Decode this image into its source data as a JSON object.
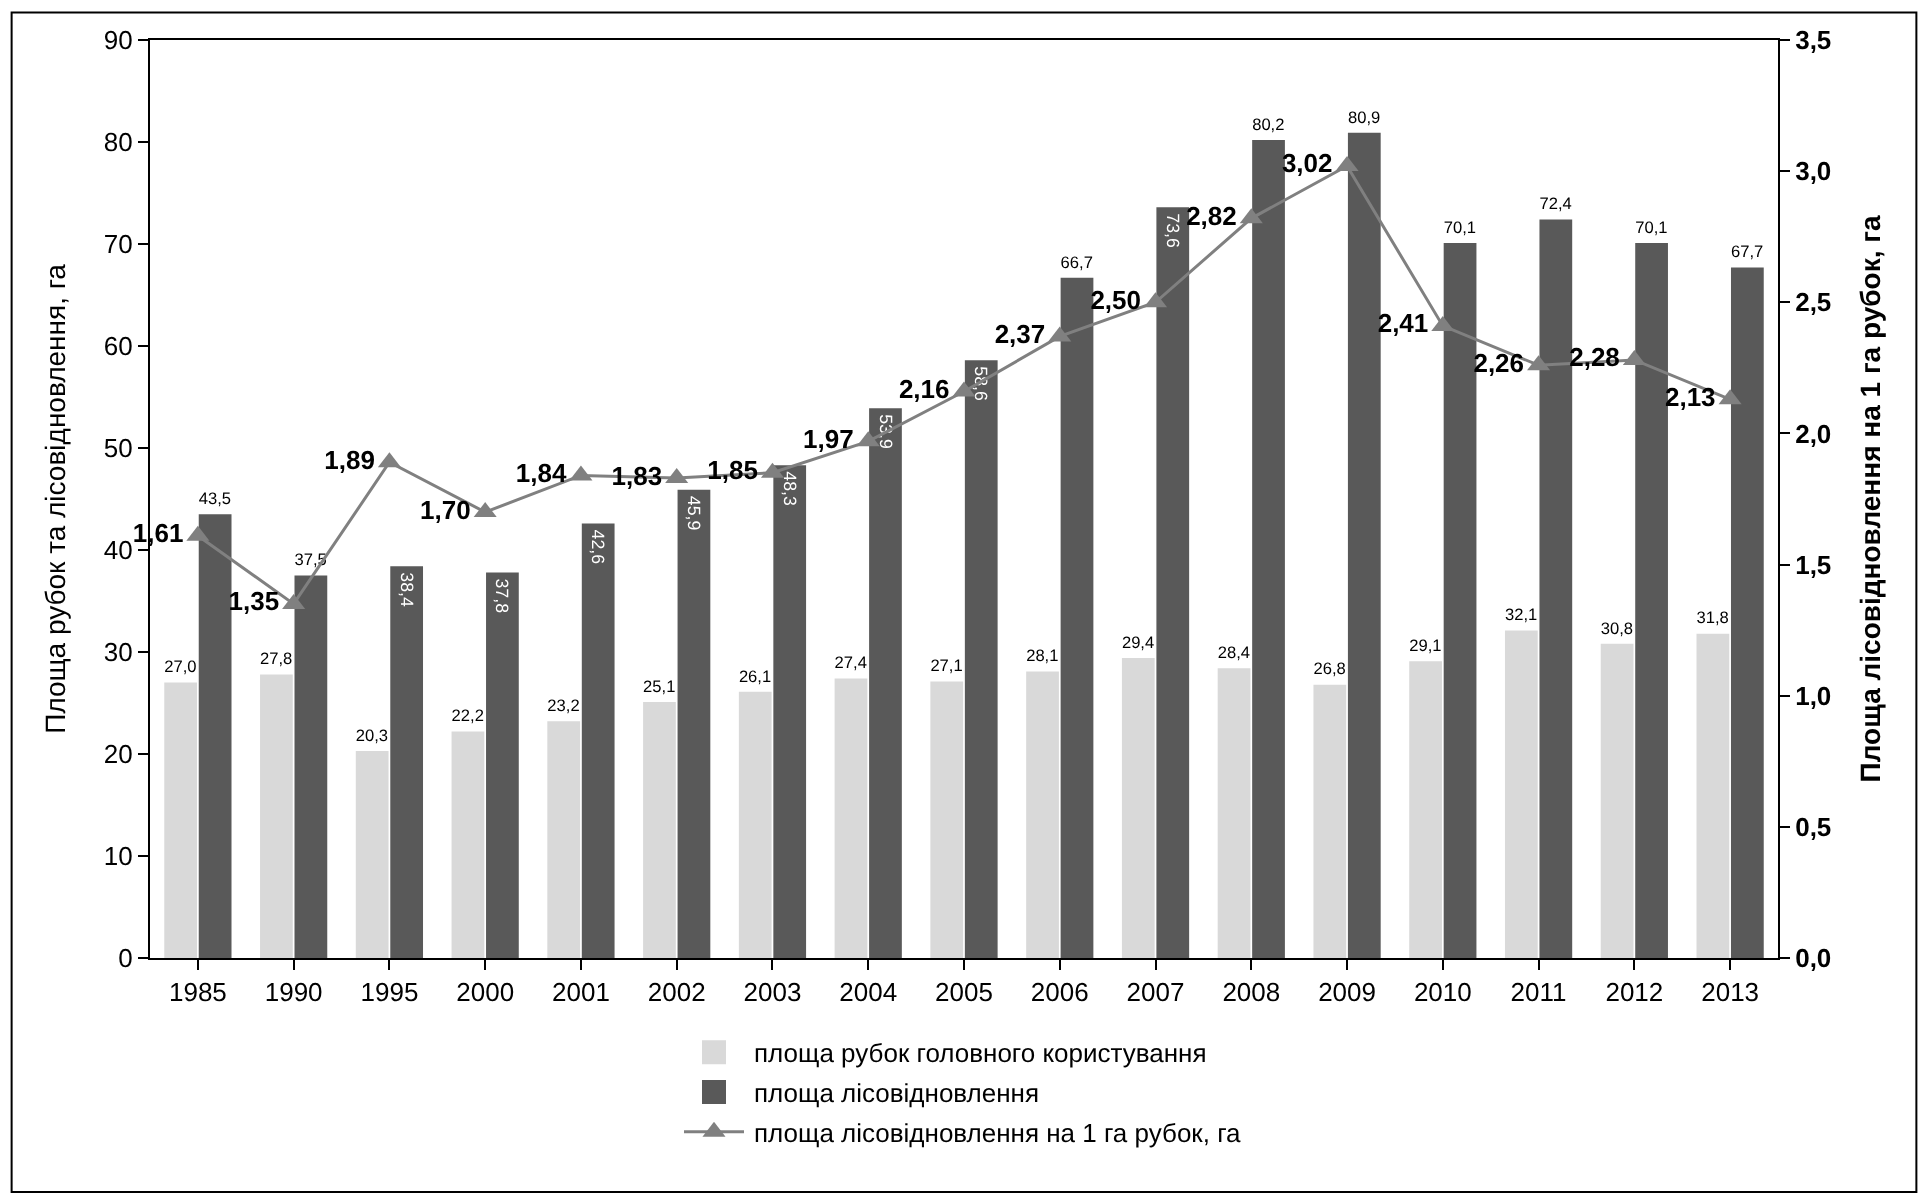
{
  "chart_data": {
    "type": "bar",
    "ylabel": "Площа рубок та лісовідновлення, га",
    "y2label": "Площа лісовідновлення на 1 га рубок, га",
    "categories": [
      "1985",
      "1990",
      "1995",
      "2000",
      "2001",
      "2002",
      "2003",
      "2004",
      "2005",
      "2006",
      "2007",
      "2008",
      "2009",
      "2010",
      "2011",
      "2012",
      "2013"
    ],
    "series": [
      {
        "name": "площа рубок головного користування",
        "color": "#d9d9d9",
        "values": [
          27.0,
          27.8,
          20.3,
          22.2,
          23.2,
          25.1,
          26.1,
          27.4,
          27.1,
          28.1,
          29.4,
          28.4,
          26.8,
          29.1,
          32.1,
          30.8,
          31.8
        ],
        "value_labels": [
          "27,0",
          "27,8",
          "20,3",
          "22,2",
          "23,2",
          "25,1",
          "26,1",
          "27,4",
          "27,1",
          "28,1",
          "29,4",
          "28,4",
          "26,8",
          "29,1",
          "32,1",
          "30,8",
          "31,8"
        ]
      },
      {
        "name": "площа лісовідновлення",
        "color": "#595959",
        "values": [
          43.5,
          37.5,
          38.4,
          37.8,
          42.6,
          45.9,
          48.3,
          53.9,
          58.6,
          66.7,
          73.6,
          80.2,
          80.9,
          70.1,
          72.4,
          70.1,
          67.7
        ],
        "value_labels": [
          "43,5",
          "37,5",
          "38,4",
          "37,8",
          "42,6",
          "45,9",
          "48,3",
          "53,9",
          "58,6",
          "66,7",
          "73,6",
          "80,2",
          "80,9",
          "70,1",
          "72,4",
          "70,1",
          "67,7"
        ]
      },
      {
        "name": "площа лісовідновлення на 1 га рубок, га",
        "type": "line",
        "axis": "y2",
        "color": "#808080",
        "marker": "triangle",
        "values": [
          1.61,
          1.35,
          1.89,
          1.7,
          1.84,
          1.83,
          1.85,
          1.97,
          2.16,
          2.37,
          2.5,
          2.82,
          3.02,
          2.41,
          2.26,
          2.28,
          2.13
        ],
        "value_labels": [
          "1,61",
          "1,35",
          "1,89",
          "1,70",
          "1,84",
          "1,83",
          "1,85",
          "1,97",
          "2,16",
          "2,37",
          "2,50",
          "2,82",
          "3,02",
          "2,41",
          "2,26",
          "2,28",
          "2,13"
        ]
      }
    ],
    "ylim": [
      0,
      90
    ],
    "yticks": [
      0,
      10,
      20,
      30,
      40,
      50,
      60,
      70,
      80,
      90
    ],
    "y2lim": [
      0,
      3.5
    ],
    "y2ticks": [
      {
        "value": 0,
        "label": "0,0"
      },
      {
        "value": 0.5,
        "label": "0,5"
      },
      {
        "value": 1,
        "label": "1,0"
      },
      {
        "value": 1.5,
        "label": "1,5"
      },
      {
        "value": 2,
        "label": "2,0"
      },
      {
        "value": 2.5,
        "label": "2,5"
      },
      {
        "value": 3,
        "label": "3,0"
      },
      {
        "value": 3.5,
        "label": "3,5"
      }
    ],
    "legend": "bottom"
  }
}
